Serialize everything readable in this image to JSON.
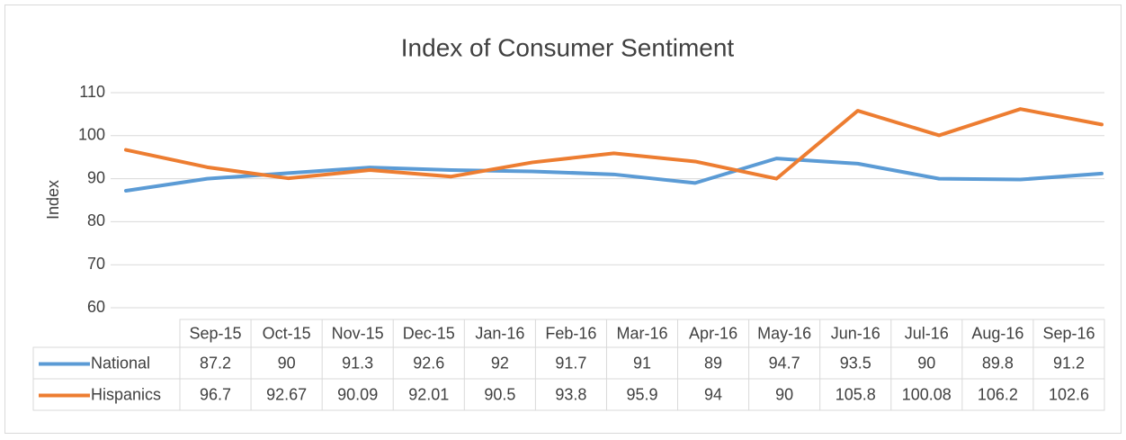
{
  "chart_data": {
    "type": "line",
    "title": "Index of Consumer Sentiment",
    "y_label": "Index",
    "categories": [
      "Sep-15",
      "Oct-15",
      "Nov-15",
      "Dec-15",
      "Jan-16",
      "Feb-16",
      "Mar-16",
      "Apr-16",
      "May-16",
      "Jun-16",
      "Jul-16",
      "Aug-16",
      "Sep-16"
    ],
    "series": [
      {
        "name": "National",
        "color": "#5b9bd5",
        "values": [
          87.2,
          90,
          91.3,
          92.6,
          92,
          91.7,
          91,
          89,
          94.7,
          93.5,
          90,
          89.8,
          91.2
        ]
      },
      {
        "name": "Hispanics",
        "color": "#ed7d31",
        "values": [
          96.7,
          92.67,
          90.09,
          92.01,
          90.5,
          93.8,
          95.9,
          94,
          90,
          105.8,
          100.08,
          106.2,
          102.6
        ]
      }
    ],
    "ylim": [
      60,
      110
    ],
    "yticks": [
      60,
      70,
      80,
      90,
      100,
      110
    ],
    "grid": true
  }
}
